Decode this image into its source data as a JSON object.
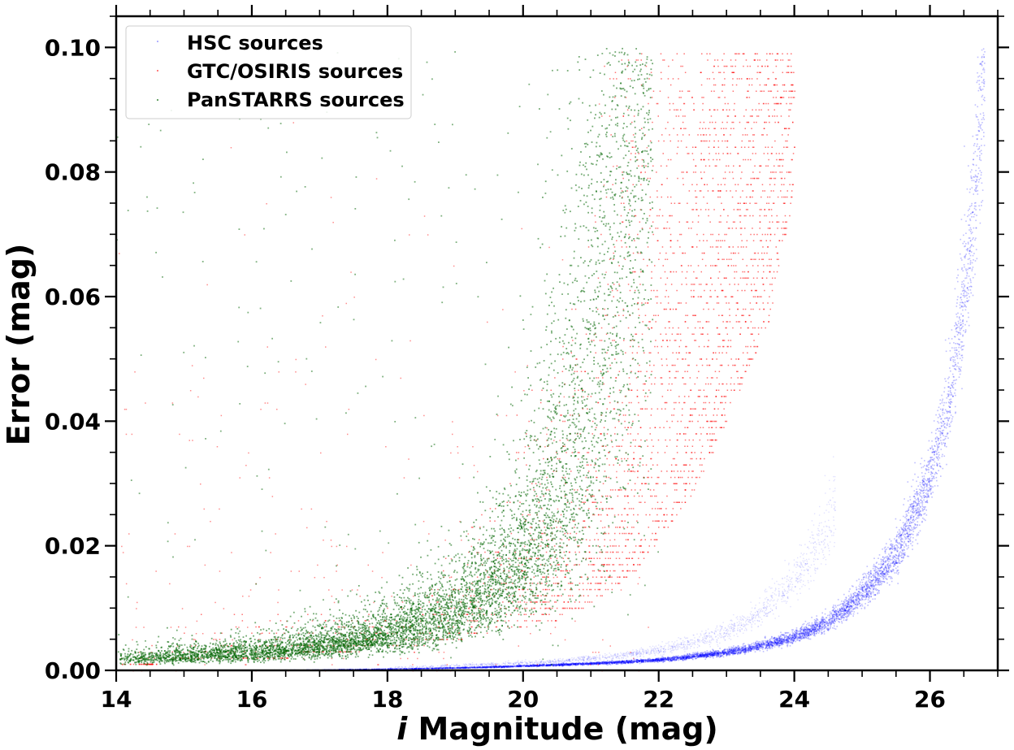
{
  "chart_data": {
    "type": "scatter",
    "title": "",
    "xlabel_italic": "i",
    "xlabel_rest": " Magnitude (mag)",
    "ylabel": "Error (mag)",
    "xlim": [
      14,
      27
    ],
    "ylim": [
      0,
      0.105
    ],
    "xticks": [
      14,
      16,
      18,
      20,
      22,
      24,
      26
    ],
    "xtick_labels": [
      "14",
      "16",
      "18",
      "20",
      "22",
      "24",
      "26"
    ],
    "yticks": [
      0.0,
      0.02,
      0.04,
      0.06,
      0.08,
      0.1
    ],
    "ytick_labels": [
      "0.00",
      "0.02",
      "0.04",
      "0.06",
      "0.08",
      "0.10"
    ],
    "grid": false,
    "legend_position": "top-left",
    "series": [
      {
        "name": "HSC sources",
        "color": "#0000ff",
        "trend": {
          "description": "dense exponential locus rising from ~0 at i=16 to 0.10 at i~26.8, plus faint secondary branch",
          "x": [
            16,
            18,
            20,
            22,
            23,
            24,
            24.5,
            25,
            25.5,
            26,
            26.3,
            26.6,
            26.8
          ],
          "y": [
            0.0001,
            0.0003,
            0.0008,
            0.0018,
            0.003,
            0.0055,
            0.008,
            0.0125,
            0.019,
            0.032,
            0.045,
            0.07,
            0.1
          ]
        }
      },
      {
        "name": "GTC/OSIRIS sources",
        "color": "#ff0000",
        "trend": {
          "description": "quantized error rows (step 0.001) from i=14 to ~24, magnitude cutoff increasing with error",
          "x": [
            14,
            16,
            18,
            20,
            21,
            22,
            23,
            23.8
          ],
          "y": [
            0.001,
            0.002,
            0.004,
            0.008,
            0.015,
            0.03,
            0.055,
            0.099
          ]
        }
      },
      {
        "name": "PanSTARRS sources",
        "color": "#006400",
        "trend": {
          "description": "broad band rising from ~0.002 at i=14 to 0.10 at i~21.5",
          "x": [
            14,
            16,
            18,
            19,
            20,
            20.5,
            21,
            21.5
          ],
          "y": [
            0.002,
            0.003,
            0.006,
            0.01,
            0.018,
            0.028,
            0.05,
            0.1
          ]
        }
      }
    ]
  }
}
